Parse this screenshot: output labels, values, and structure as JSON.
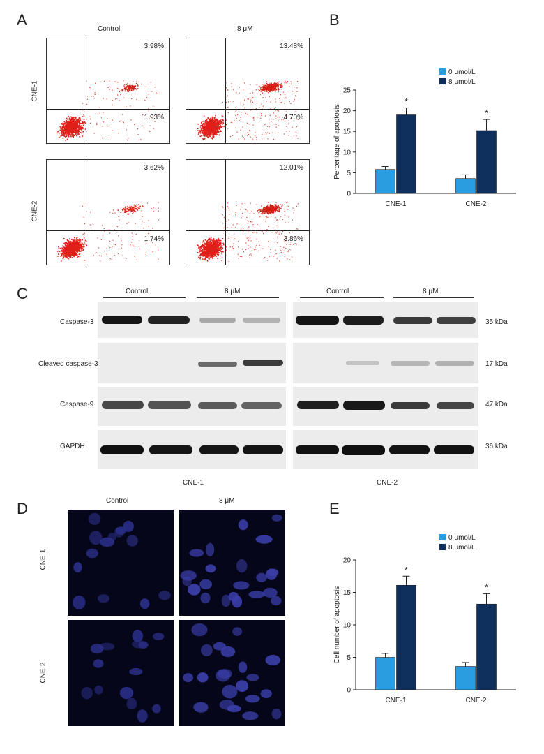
{
  "panels": {
    "a": "A",
    "b": "B",
    "c": "C",
    "d": "D",
    "e": "E"
  },
  "flow": {
    "col_labels": [
      "Control",
      "8 μM"
    ],
    "row_labels": [
      "CNE-1",
      "CNE-2"
    ],
    "quads": [
      {
        "upper": "3.98%",
        "lower": "1.93%"
      },
      {
        "upper": "13.48%",
        "lower": "4.70%"
      },
      {
        "upper": "3.62%",
        "lower": "1.74%"
      },
      {
        "upper": "12.01%",
        "lower": "3.86%"
      }
    ]
  },
  "chart_data": [
    {
      "type": "bar",
      "categories": [
        "CNE-1",
        "CNE-2"
      ],
      "series": [
        {
          "name": "0 μmol/L",
          "values": [
            5.8,
            3.6
          ],
          "errors": [
            0.7,
            0.9
          ]
        },
        {
          "name": "8 μmol/L",
          "values": [
            19.0,
            15.2
          ],
          "errors": [
            1.7,
            2.7
          ]
        }
      ],
      "ylabel": "Percentage of apoptosis",
      "ylim": [
        0,
        25
      ],
      "yticks": [
        0,
        5,
        10,
        15,
        20,
        25
      ],
      "significance": [
        "*",
        "*"
      ],
      "legend": "top-left",
      "colors": [
        "#2a9de0",
        "#0f2f5c"
      ]
    },
    {
      "type": "bar",
      "categories": [
        "CNE-1",
        "CNE-2"
      ],
      "series": [
        {
          "name": "0 μmol/L",
          "values": [
            5.0,
            3.6
          ],
          "errors": [
            0.6,
            0.6
          ]
        },
        {
          "name": "8 μmol/L",
          "values": [
            16.1,
            13.2
          ],
          "errors": [
            1.4,
            1.6
          ]
        }
      ],
      "ylabel": "Cell number of apoptosis",
      "ylim": [
        0,
        20
      ],
      "yticks": [
        0,
        5,
        10,
        15,
        20
      ],
      "significance": [
        "*",
        "*"
      ],
      "legend": "top-left",
      "colors": [
        "#2a9de0",
        "#0f2f5c"
      ]
    }
  ],
  "western": {
    "group_labels": [
      "Control",
      "8 μM",
      "Control",
      "8 μM"
    ],
    "rows": [
      {
        "name": "Caspase-3",
        "kda": "35 kDa"
      },
      {
        "name": "Cleaved caspase-3",
        "kda": "17 kDa"
      },
      {
        "name": "Caspase-9",
        "kda": "47 kDa"
      },
      {
        "name": "GAPDH",
        "kda": "36 kDa"
      }
    ],
    "cell_lines": [
      "CNE-1",
      "CNE-2"
    ]
  },
  "staining": {
    "col_labels": [
      "Control",
      "8 μM"
    ],
    "row_labels": [
      "CNE-1",
      "CNE-2"
    ]
  }
}
